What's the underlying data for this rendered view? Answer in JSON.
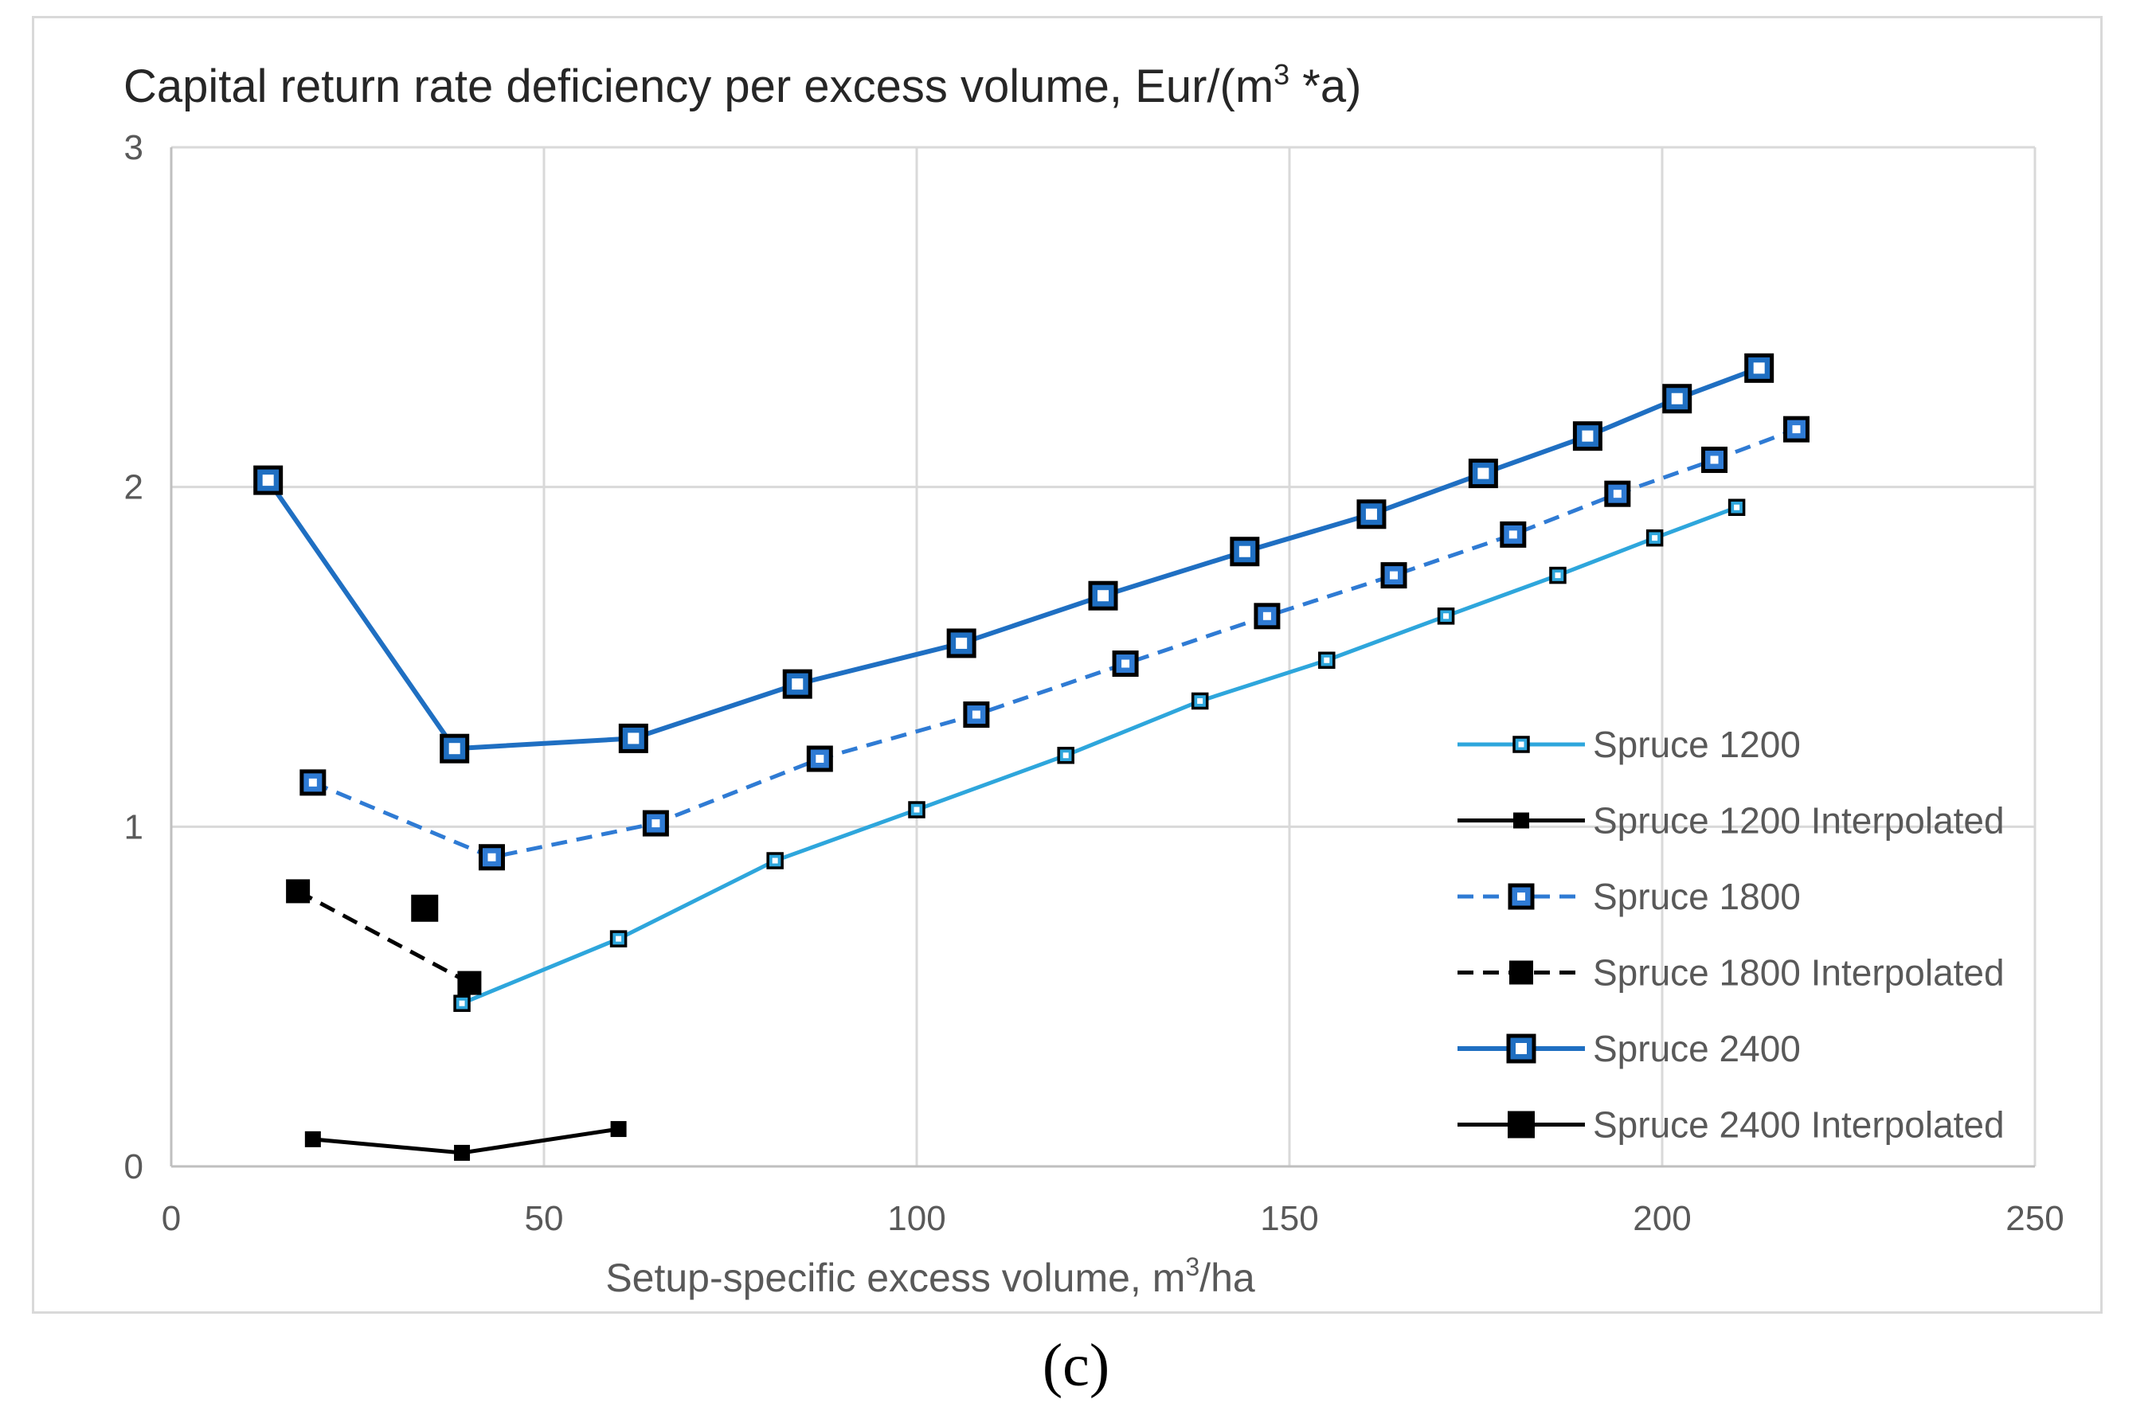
{
  "chart_data": {
    "type": "line",
    "title": "Capital return rate deficiency per excess volume,  Eur/(m³ *a)",
    "title_main": "Capital return rate deficiency per excess volume,  Eur/(m",
    "title_sup": "3",
    "title_tail": " *a)",
    "xlabel": "Setup-specific excess volume, m³/ha",
    "xlabel_main": "Setup-specific excess volume, m",
    "xlabel_sup": "3",
    "xlabel_tail": "/ha",
    "ylabel": "",
    "xlim": [
      0,
      250
    ],
    "ylim": [
      0,
      3
    ],
    "x_ticks": [
      0,
      50,
      100,
      150,
      200,
      250
    ],
    "y_ticks": [
      0,
      1,
      2,
      3
    ],
    "grid": true,
    "legend_position": "right",
    "panel_label": "(c)",
    "series": [
      {
        "name": "Spruce 1200",
        "color": "#2ea6dc",
        "dash": "solid",
        "marker": "small-hollow-square",
        "x": [
          39,
          60,
          81,
          100,
          120,
          138,
          155,
          171,
          186,
          199,
          210
        ],
        "y": [
          0.48,
          0.67,
          0.9,
          1.05,
          1.21,
          1.37,
          1.49,
          1.62,
          1.74,
          1.85,
          1.94
        ]
      },
      {
        "name": "Spruce 1200 Interpolated",
        "color": "#000000",
        "dash": "solid",
        "marker": "small-filled-square",
        "x": [
          19,
          39,
          60
        ],
        "y": [
          0.08,
          0.04,
          0.11
        ]
      },
      {
        "name": "Spruce 1800",
        "color": "#2f7bd4",
        "dash": "dashed",
        "marker": "medium-hollow-square",
        "x": [
          19,
          43,
          65,
          87,
          108,
          128,
          147,
          164,
          180,
          194,
          207,
          218
        ],
        "y": [
          1.13,
          0.91,
          1.01,
          1.2,
          1.33,
          1.48,
          1.62,
          1.74,
          1.86,
          1.98,
          2.08,
          2.17
        ]
      },
      {
        "name": "Spruce 1800 Interpolated",
        "color": "#000000",
        "dash": "dashed",
        "marker": "medium-filled-square",
        "x": [
          17,
          40
        ],
        "y": [
          0.81,
          0.54
        ]
      },
      {
        "name": "Spruce 2400",
        "color": "#1f6fc2",
        "dash": "solid",
        "marker": "large-hollow-square",
        "x": [
          13,
          38,
          62,
          84,
          106,
          125,
          144,
          161,
          176,
          190,
          202,
          213
        ],
        "y": [
          2.02,
          1.23,
          1.26,
          1.42,
          1.54,
          1.68,
          1.81,
          1.92,
          2.04,
          2.15,
          2.26,
          2.35
        ]
      },
      {
        "name": "Spruce 2400 Interpolated",
        "color": "#000000",
        "dash": "solid",
        "marker": "large-filled-square",
        "x": [
          34
        ],
        "y": [
          0.76
        ]
      }
    ]
  }
}
